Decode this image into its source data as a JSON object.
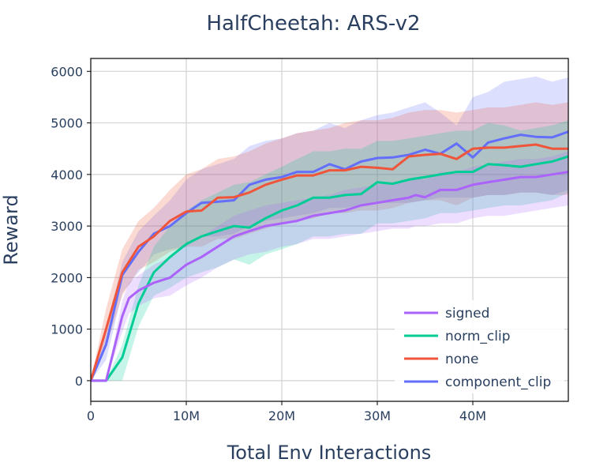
{
  "chart_data": {
    "type": "line",
    "title": "HalfCheetah: ARS-v2",
    "xlabel": "Total Env Interactions",
    "ylabel": "Reward",
    "xlim": [
      0,
      50000000
    ],
    "ylim": [
      -400,
      6250
    ],
    "x_ticks": [
      {
        "value": 0,
        "label": "0"
      },
      {
        "value": 10000000,
        "label": "10M"
      },
      {
        "value": 20000000,
        "label": "20M"
      },
      {
        "value": 30000000,
        "label": "30M"
      },
      {
        "value": 40000000,
        "label": "40M"
      }
    ],
    "y_ticks": [
      {
        "value": 0,
        "label": "0"
      },
      {
        "value": 1000,
        "label": "1000"
      },
      {
        "value": 2000,
        "label": "2000"
      },
      {
        "value": 3000,
        "label": "3000"
      },
      {
        "value": 4000,
        "label": "4000"
      },
      {
        "value": 5000,
        "label": "5000"
      },
      {
        "value": 6000,
        "label": "6000"
      }
    ],
    "grid": true,
    "legend_position": "bottom-right",
    "series": [
      {
        "name": "component_clip",
        "color": "#636efa",
        "x": [
          0,
          1600000,
          3300000,
          5000000,
          6600000,
          8300000,
          10000000,
          11600000,
          13300000,
          15000000,
          16600000,
          18300000,
          20000000,
          21600000,
          23300000,
          25000000,
          26600000,
          28300000,
          30000000,
          31600000,
          33300000,
          35000000,
          36600000,
          38300000,
          40000000,
          41600000,
          43300000,
          45000000,
          46600000,
          48300000,
          50000000
        ],
        "y": [
          0,
          700,
          2050,
          2500,
          2850,
          3000,
          3250,
          3450,
          3470,
          3500,
          3800,
          3900,
          3950,
          4050,
          4050,
          4200,
          4100,
          4250,
          4320,
          4330,
          4380,
          4480,
          4400,
          4600,
          4330,
          4620,
          4700,
          4770,
          4730,
          4720,
          4830
        ],
        "upper": [
          0,
          1000,
          2300,
          2900,
          3200,
          3500,
          3900,
          4100,
          4200,
          4300,
          4550,
          4650,
          4700,
          4800,
          4850,
          5000,
          4900,
          5050,
          5150,
          5200,
          5300,
          5400,
          5200,
          4950,
          5500,
          5600,
          5800,
          5850,
          5900,
          5800,
          5880
        ],
        "lower": [
          0,
          400,
          1700,
          2100,
          2450,
          2550,
          2600,
          2800,
          2800,
          2850,
          3000,
          3100,
          3150,
          3200,
          3250,
          3350,
          3350,
          3400,
          3450,
          3450,
          3450,
          3500,
          3550,
          3550,
          3550,
          3600,
          3600,
          3650,
          3650,
          3600,
          3700
        ]
      },
      {
        "name": "none",
        "color": "#ef553b",
        "x": [
          0,
          1600000,
          3300000,
          5000000,
          6600000,
          8300000,
          10000000,
          11600000,
          13300000,
          15000000,
          16600000,
          18300000,
          20000000,
          21600000,
          23300000,
          25000000,
          26600000,
          28300000,
          30000000,
          31600000,
          33300000,
          35000000,
          36600000,
          38300000,
          40000000,
          41600000,
          43300000,
          45000000,
          46600000,
          48300000,
          50000000
        ],
        "y": [
          0,
          1000,
          2100,
          2600,
          2800,
          3100,
          3280,
          3300,
          3550,
          3560,
          3650,
          3800,
          3900,
          3980,
          3980,
          4080,
          4080,
          4150,
          4130,
          4100,
          4350,
          4380,
          4400,
          4300,
          4500,
          4520,
          4520,
          4550,
          4580,
          4500,
          4500
        ],
        "upper": [
          0,
          1400,
          2550,
          3100,
          3350,
          3700,
          4000,
          4100,
          4300,
          4350,
          4450,
          4600,
          4700,
          4800,
          4850,
          4900,
          5000,
          5050,
          5050,
          5100,
          5200,
          5250,
          5250,
          5200,
          5250,
          5300,
          5300,
          5350,
          5400,
          5350,
          5400
        ],
        "lower": [
          0,
          650,
          1650,
          2150,
          2300,
          2500,
          2600,
          2600,
          2750,
          2750,
          2850,
          2950,
          3050,
          3100,
          3150,
          3250,
          3250,
          3300,
          3300,
          3350,
          3450,
          3500,
          3500,
          3400,
          3550,
          3600,
          3600,
          3650,
          3650,
          3600,
          3600
        ]
      },
      {
        "name": "norm_clip",
        "color": "#00cc96",
        "x": [
          0,
          1600000,
          3300000,
          5000000,
          6600000,
          8300000,
          10000000,
          11600000,
          13300000,
          15000000,
          16600000,
          18300000,
          20000000,
          21600000,
          23300000,
          25000000,
          26600000,
          28300000,
          30000000,
          31600000,
          33300000,
          35000000,
          36600000,
          38300000,
          40000000,
          41600000,
          43300000,
          45000000,
          46600000,
          48300000,
          50000000
        ],
        "y": [
          0,
          0,
          450,
          1500,
          2100,
          2400,
          2650,
          2800,
          2900,
          3000,
          2970,
          3150,
          3300,
          3400,
          3550,
          3550,
          3600,
          3620,
          3850,
          3820,
          3900,
          3950,
          4000,
          4050,
          4050,
          4200,
          4180,
          4150,
          4200,
          4250,
          4350
        ],
        "upper": [
          0,
          0,
          700,
          1850,
          2600,
          3000,
          3300,
          3500,
          3650,
          3800,
          3850,
          4000,
          4150,
          4300,
          4450,
          4450,
          4500,
          4500,
          4650,
          4650,
          4700,
          4750,
          4800,
          4850,
          4850,
          5000,
          4950,
          4850,
          4900,
          4950,
          5050
        ],
        "lower": [
          0,
          0,
          0,
          1050,
          1650,
          1800,
          2000,
          2100,
          2200,
          2350,
          2250,
          2450,
          2550,
          2650,
          2800,
          2800,
          2850,
          2850,
          3050,
          3050,
          3100,
          3150,
          3250,
          3250,
          3300,
          3350,
          3400,
          3400,
          3450,
          3500,
          3650
        ]
      },
      {
        "name": "signed",
        "color": "#ab63fa",
        "x": [
          0,
          1600000,
          3300000,
          4000000,
          5000000,
          6600000,
          8300000,
          10000000,
          11600000,
          13300000,
          15000000,
          16600000,
          18300000,
          20000000,
          21600000,
          23300000,
          25000000,
          26600000,
          28300000,
          30000000,
          31600000,
          33300000,
          34000000,
          35000000,
          36600000,
          38300000,
          40000000,
          41600000,
          43300000,
          45000000,
          46600000,
          48300000,
          50000000
        ],
        "y": [
          0,
          0,
          1250,
          1600,
          1750,
          1900,
          2000,
          2250,
          2400,
          2600,
          2800,
          2900,
          3000,
          3050,
          3100,
          3200,
          3250,
          3300,
          3400,
          3450,
          3500,
          3550,
          3600,
          3560,
          3700,
          3700,
          3800,
          3850,
          3900,
          3950,
          3950,
          4000,
          4050
        ],
        "upper": [
          0,
          0,
          1550,
          1900,
          2050,
          2250,
          2400,
          2650,
          2800,
          3000,
          3200,
          3300,
          3400,
          3450,
          3500,
          3550,
          3600,
          3700,
          3750,
          3800,
          3850,
          3900,
          3950,
          3900,
          4050,
          4050,
          4150,
          4200,
          4250,
          4300,
          4300,
          4350,
          4450
        ],
        "lower": [
          0,
          0,
          950,
          1300,
          1450,
          1600,
          1650,
          1850,
          2000,
          2200,
          2350,
          2450,
          2500,
          2600,
          2650,
          2750,
          2750,
          2800,
          2850,
          2900,
          2950,
          2950,
          3000,
          3000,
          3050,
          3050,
          3150,
          3200,
          3200,
          3250,
          3300,
          3350,
          3400
        ]
      }
    ],
    "legend_order": [
      "signed",
      "norm_clip",
      "none",
      "component_clip"
    ]
  }
}
